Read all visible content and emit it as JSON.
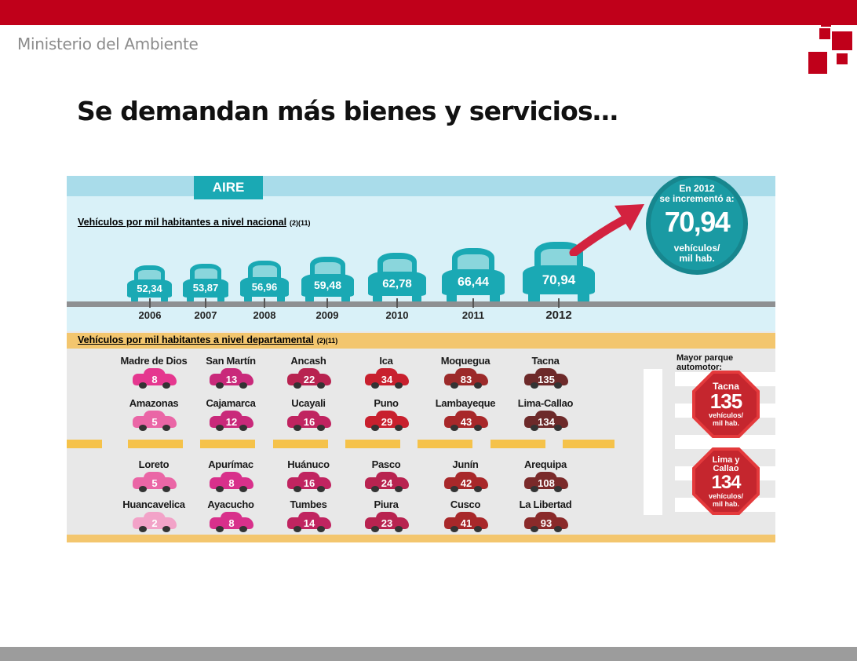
{
  "header": {
    "ministry": "Ministerio del Ambiente",
    "title": "Se demandan más bienes y servicios…"
  },
  "colors": {
    "brand_red": "#c0001a",
    "teal": "#1aa9b4",
    "footer_gray": "#9c9c9c"
  },
  "infographic": {
    "tag": "AIRE",
    "national_heading": "Vehículos por mil habitantes a nivel nacional",
    "national_ref": "(2)(11)",
    "bubble": {
      "line1": "En 2012",
      "line2": "se incrementó a:",
      "value": "70,94",
      "line3": "vehículos/",
      "line4": "mil hab."
    },
    "national": [
      {
        "year": "2006",
        "value": "52,34"
      },
      {
        "year": "2007",
        "value": "53,87"
      },
      {
        "year": "2008",
        "value": "56,96"
      },
      {
        "year": "2009",
        "value": "59,48"
      },
      {
        "year": "2010",
        "value": "62,78"
      },
      {
        "year": "2011",
        "value": "66,44"
      },
      {
        "year": "2012",
        "value": "70,94"
      }
    ],
    "dept_heading": "Vehículos por mil habitantes a nivel departamental",
    "dept_ref": "(2)(11)",
    "departments": [
      {
        "name": "Madre de Dios",
        "value": "8",
        "color": "#e5378f"
      },
      {
        "name": "San Martín",
        "value": "13",
        "color": "#c9297a"
      },
      {
        "name": "Ancash",
        "value": "22",
        "color": "#b82350"
      },
      {
        "name": "Ica",
        "value": "34",
        "color": "#c8202e"
      },
      {
        "name": "Moquegua",
        "value": "83",
        "color": "#9c2a2a"
      },
      {
        "name": "Tacna",
        "value": "135",
        "color": "#6d2a2a"
      },
      {
        "name": "Amazonas",
        "value": "5",
        "color": "#ea66a6"
      },
      {
        "name": "Cajamarca",
        "value": "12",
        "color": "#c9297a"
      },
      {
        "name": "Ucayali",
        "value": "16",
        "color": "#c02460"
      },
      {
        "name": "Puno",
        "value": "29",
        "color": "#c8202e"
      },
      {
        "name": "Lambayeque",
        "value": "43",
        "color": "#a8282a"
      },
      {
        "name": "Lima-Callao",
        "value": "134",
        "color": "#6d2a2a"
      },
      {
        "name": "Loreto",
        "value": "5",
        "color": "#ea66a6"
      },
      {
        "name": "Apurímac",
        "value": "8",
        "color": "#d8308b"
      },
      {
        "name": "Huánuco",
        "value": "16",
        "color": "#c02460"
      },
      {
        "name": "Pasco",
        "value": "24",
        "color": "#b82350"
      },
      {
        "name": "Junín",
        "value": "42",
        "color": "#a8282a"
      },
      {
        "name": "Arequipa",
        "value": "108",
        "color": "#7a2a2a"
      },
      {
        "name": "Huancavelica",
        "value": "2",
        "color": "#f2a3c8"
      },
      {
        "name": "Ayacucho",
        "value": "8",
        "color": "#d8308b"
      },
      {
        "name": "Tumbes",
        "value": "14",
        "color": "#c02460"
      },
      {
        "name": "Piura",
        "value": "23",
        "color": "#b82350"
      },
      {
        "name": "Cusco",
        "value": "41",
        "color": "#a8282a"
      },
      {
        "name": "La Libertad",
        "value": "93",
        "color": "#8a2a2a"
      }
    ],
    "right_panel": {
      "label": "Mayor parque automotor:",
      "sign1": {
        "name": "Tacna",
        "value": "135",
        "unit1": "vehículos/",
        "unit2": "mil hab."
      },
      "sign2": {
        "name1": "Lima y",
        "name2": "Callao",
        "value": "134",
        "unit1": "vehículos/",
        "unit2": "mil hab."
      }
    }
  }
}
